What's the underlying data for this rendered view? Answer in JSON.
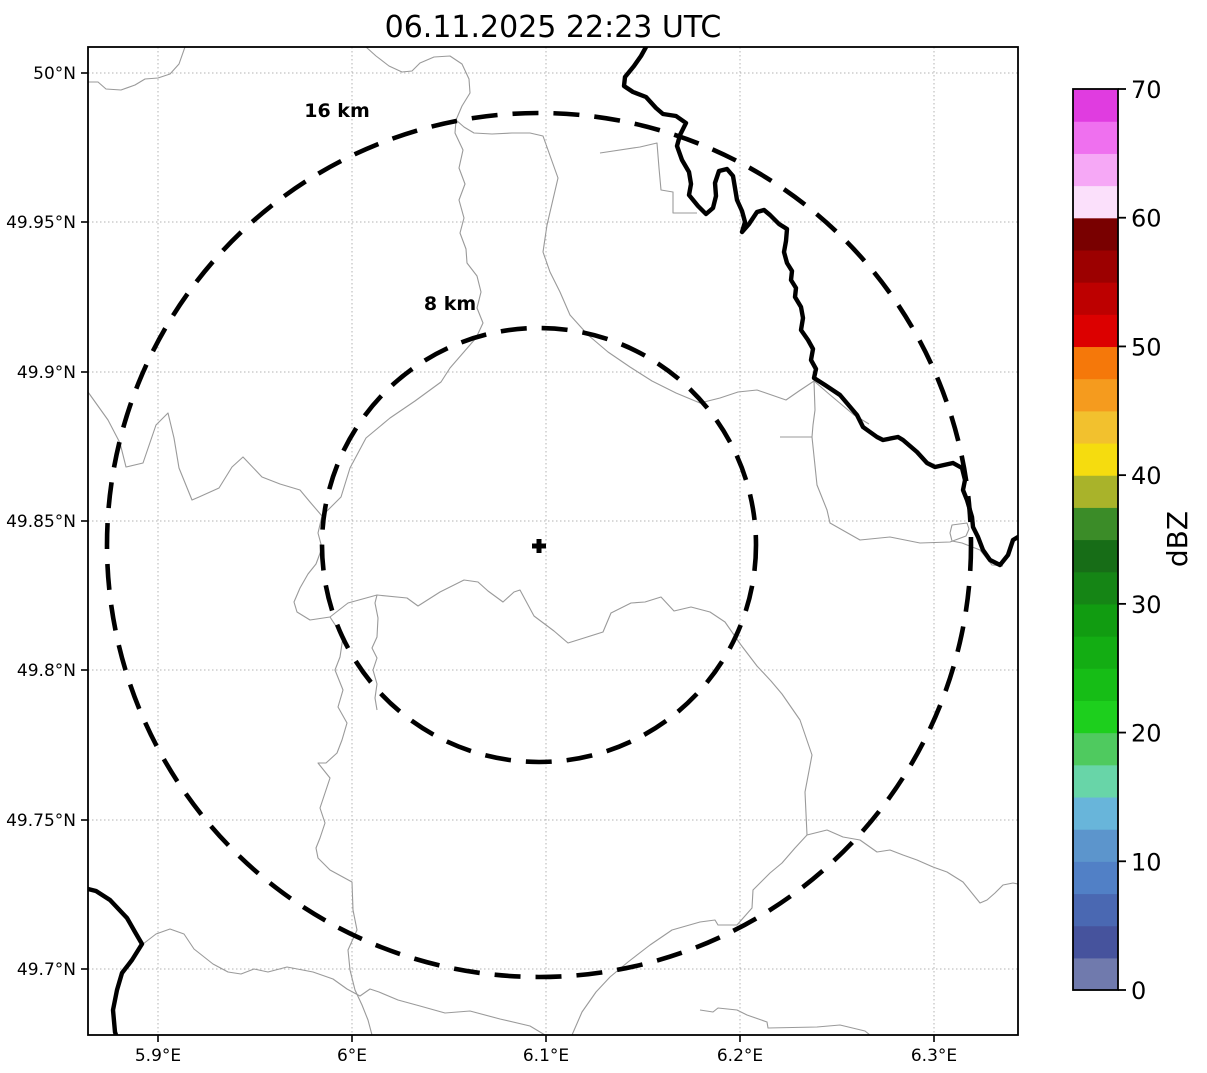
{
  "title": "06.11.2025 22:23 UTC",
  "map": {
    "range_ring_labels": {
      "outer": "16 km",
      "inner": "8 km"
    },
    "center_marker": "plus"
  },
  "axes": {
    "x_tick_labels": [
      "5.9°E",
      "6°E",
      "6.1°E",
      "6.2°E",
      "6.3°E"
    ],
    "y_tick_labels": [
      "50°N",
      "49.95°N",
      "49.9°N",
      "49.85°N",
      "49.8°N",
      "49.75°N",
      "49.7°N"
    ]
  },
  "colorbar": {
    "label": "dBZ",
    "tick_labels": [
      "0",
      "10",
      "20",
      "30",
      "40",
      "50",
      "60",
      "70"
    ]
  },
  "chart_data": {
    "type": "heatmap",
    "title": "06.11.2025 22:23 UTC",
    "xlabel": "",
    "ylabel": "",
    "x_ticks": [
      "5.9°E",
      "6°E",
      "6.1°E",
      "6.2°E",
      "6.3°E"
    ],
    "y_ticks": [
      "50°N",
      "49.95°N",
      "49.9°N",
      "49.85°N",
      "49.8°N",
      "49.75°N",
      "49.7°N"
    ],
    "xlim_deg_e": [
      5.864,
      6.343
    ],
    "ylim_deg_n": [
      49.677,
      50.009
    ],
    "grid": true,
    "values": [],
    "note": "Radar reflectivity display with no echoes visible; basemap boundaries, national border and range rings only",
    "radar_center_marker_deg": {
      "lon_e": 6.096,
      "lat_n": 49.841
    },
    "range_rings_km": [
      8,
      16
    ],
    "colorbar": {
      "label": "dBZ",
      "min": 0,
      "max": 70,
      "tick_step": 10,
      "band_step": 2.5,
      "colors_bottom_to_top": [
        "#707aad",
        "#46539d",
        "#4a68b2",
        "#5180c6",
        "#5c95cc",
        "#68b5da",
        "#68d5a8",
        "#4fca5f",
        "#1dcf1d",
        "#16bd16",
        "#13ad13",
        "#119c11",
        "#158515",
        "#176d17",
        "#3b8c28",
        "#a9b32a",
        "#f5dc0f",
        "#f2c12e",
        "#f59b1e",
        "#f5780a",
        "#dc0000",
        "#bd0000",
        "#9c0000",
        "#790000",
        "#fbe0fb",
        "#f6a8f6",
        "#ef70ef",
        "#e03ce0"
      ]
    }
  }
}
